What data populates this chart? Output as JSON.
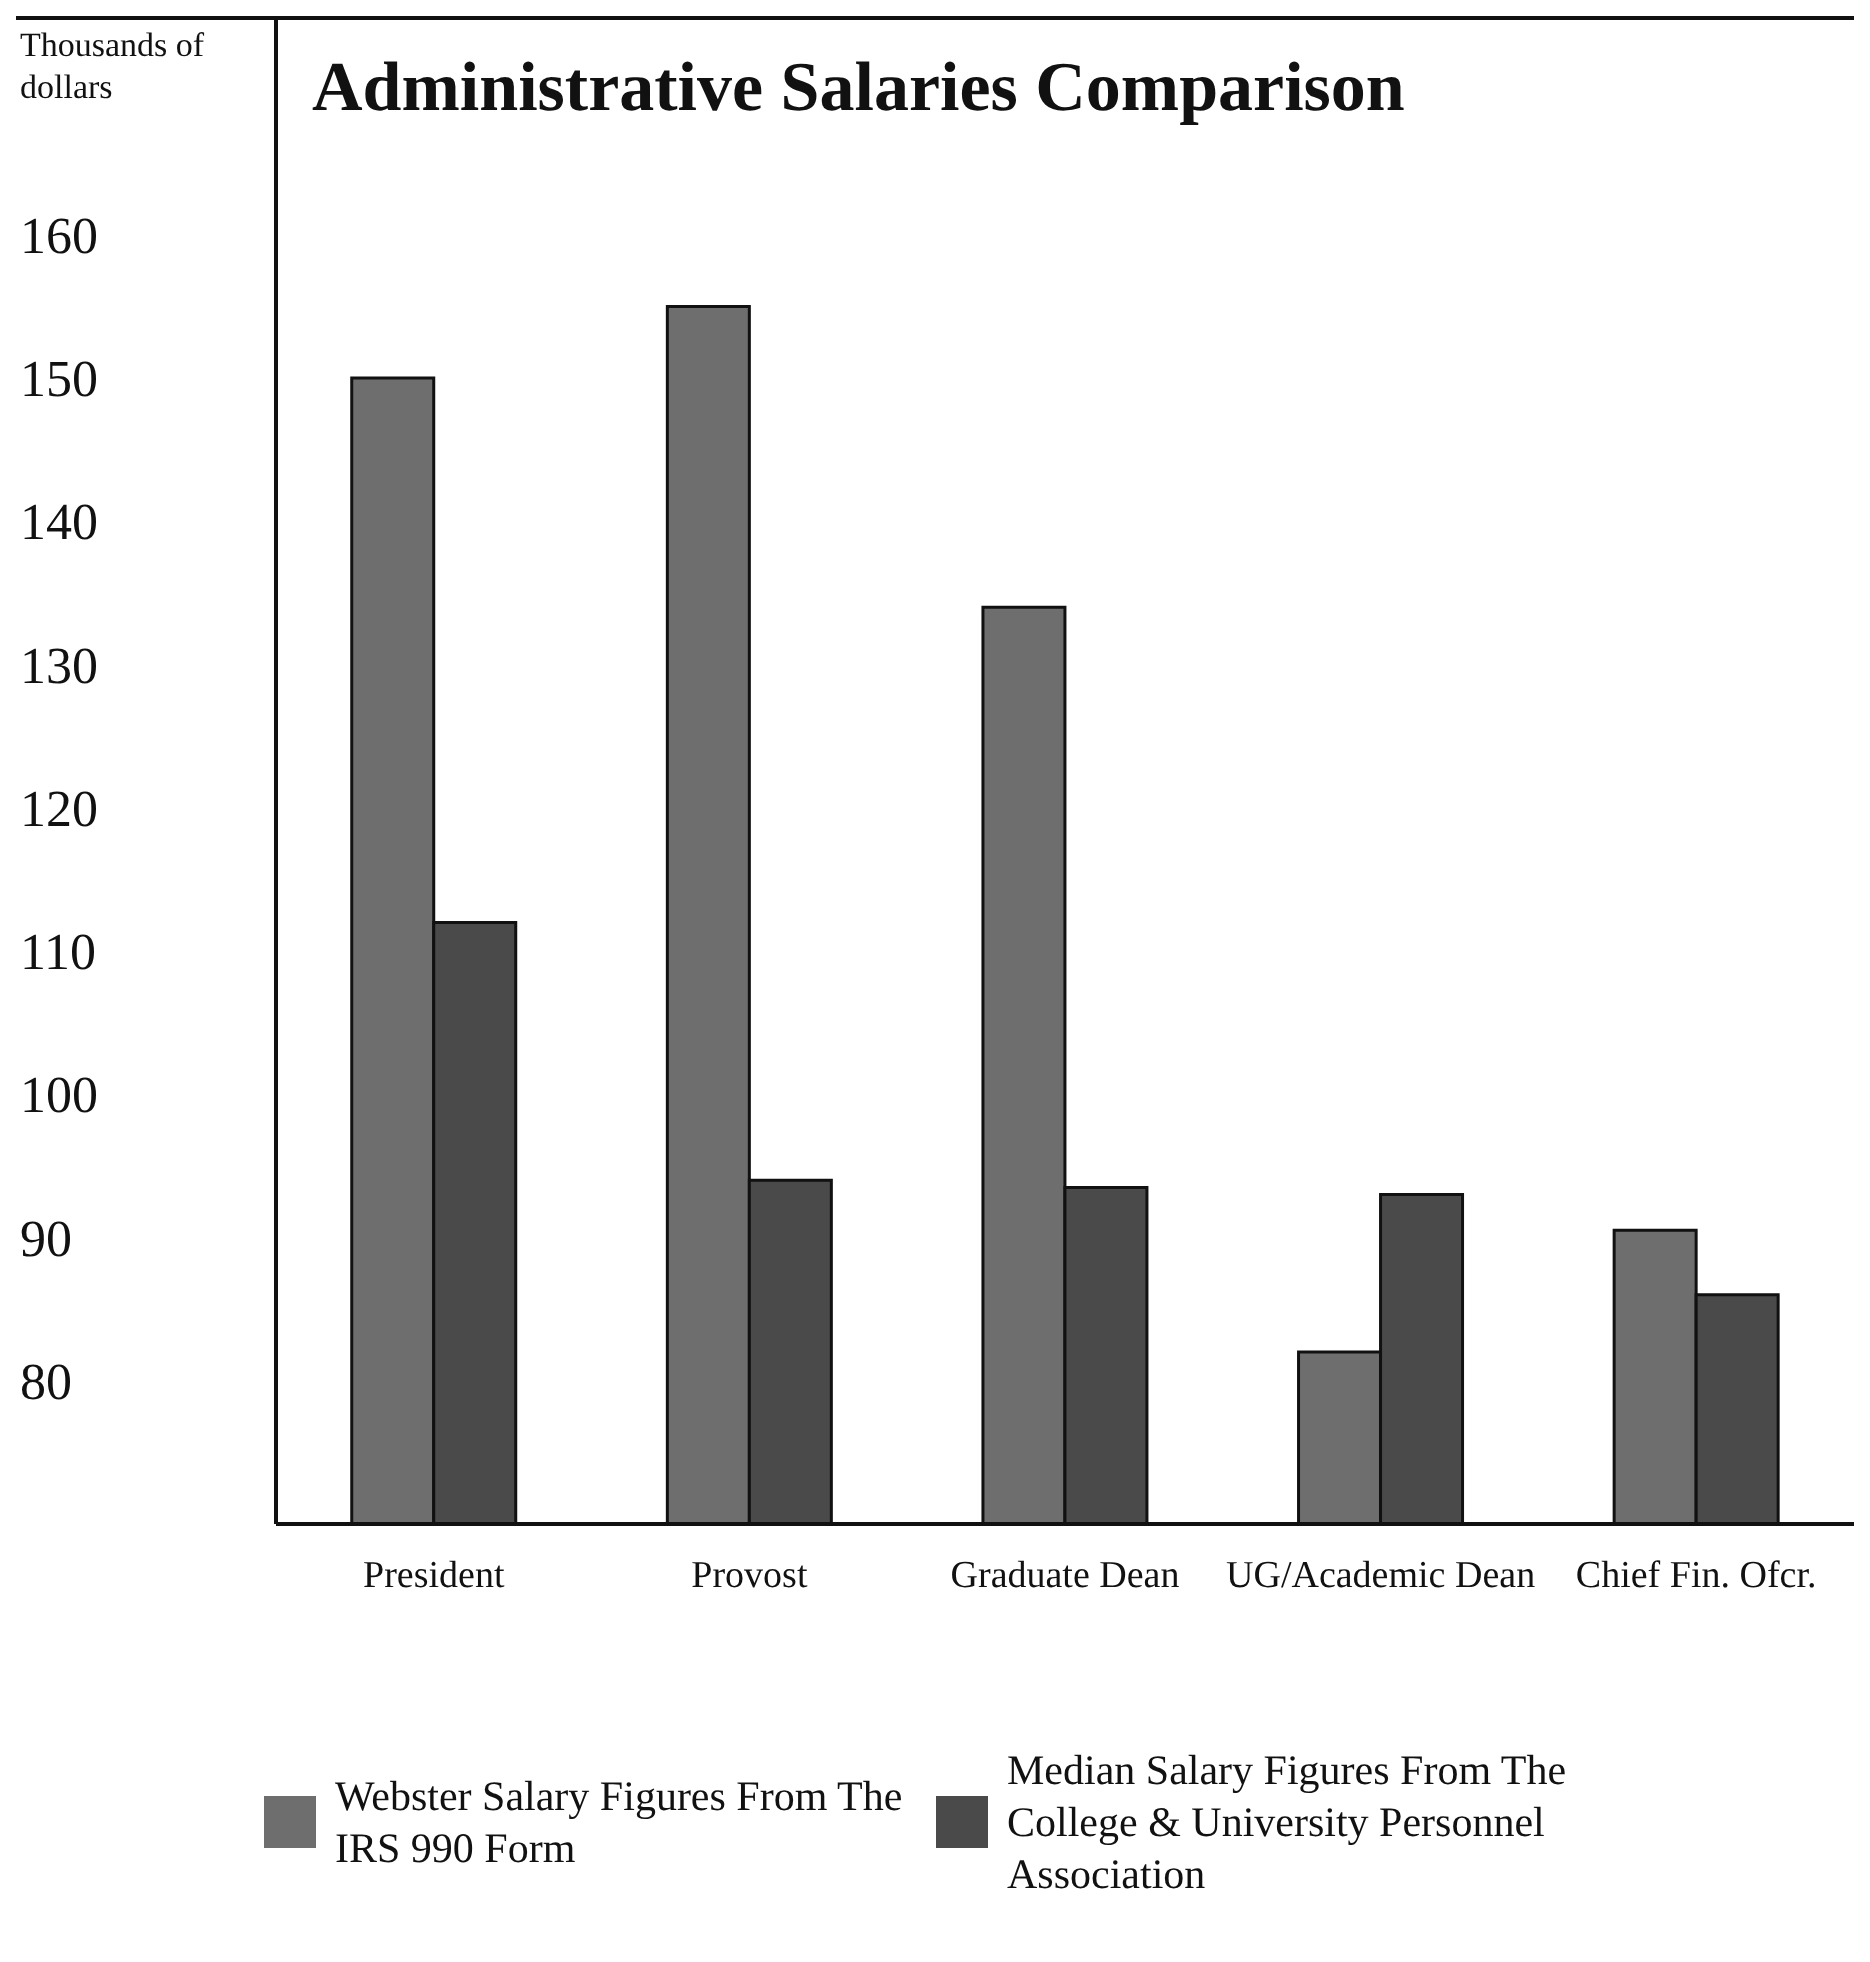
{
  "chart_data": {
    "type": "bar",
    "title": "Administrative Salaries Comparison",
    "ylabel": "Thousands of dollars",
    "categories": [
      "President",
      "Provost",
      "Graduate Dean",
      "UG/Academic Dean",
      "Chief Fin. Ofcr."
    ],
    "series": [
      {
        "name": "Webster Salary Figures From The IRS 990 Form",
        "color": "#6e6e6e",
        "values": [
          150,
          155,
          134,
          82,
          90.5
        ]
      },
      {
        "name": "Median Salary Figures From The College & University Personnel Association",
        "color": "#4a4a4a",
        "values": [
          112,
          94,
          93.5,
          93,
          86
        ]
      }
    ],
    "ylim": [
      70,
      175
    ],
    "yticks": [
      80,
      90,
      100,
      110,
      120,
      130,
      140,
      150,
      160
    ],
    "legend": "bottom"
  }
}
